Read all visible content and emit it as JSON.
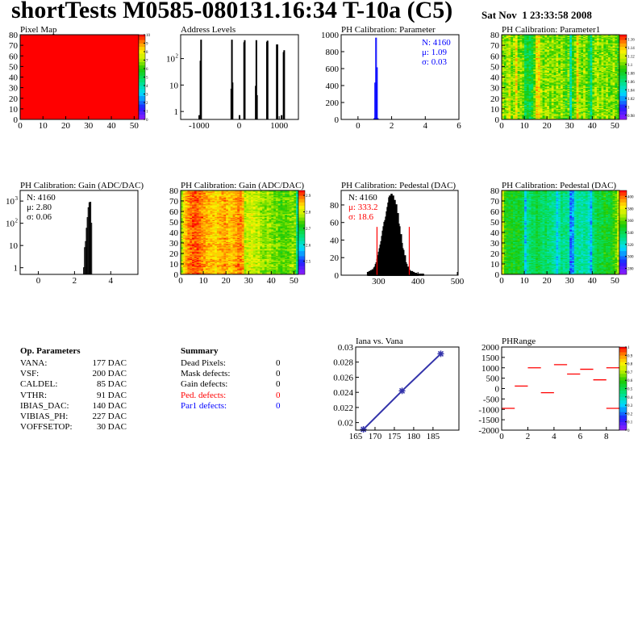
{
  "header": {
    "title": "shortTests M0585-080131.16:34 T-10a (C5)",
    "date": "Sat Nov  1 23:33:58 2008"
  },
  "op_parameters": {
    "heading": "Op. Parameters",
    "rows": [
      {
        "name": "VANA:",
        "value": "177 DAC"
      },
      {
        "name": "VSF:",
        "value": "200 DAC"
      },
      {
        "name": "CALDEL:",
        "value": "85 DAC"
      },
      {
        "name": "VTHR:",
        "value": "91 DAC"
      },
      {
        "name": "IBIAS_DAC:",
        "value": "140 DAC"
      },
      {
        "name": "VIBIAS_PH:",
        "value": "227 DAC"
      },
      {
        "name": "VOFFSETOP:",
        "value": "30 DAC"
      }
    ]
  },
  "summary": {
    "heading": "Summary",
    "rows": [
      {
        "name": "Dead Pixels:",
        "value": "0",
        "color": "#000000"
      },
      {
        "name": "Mask defects:",
        "value": "0",
        "color": "#000000"
      },
      {
        "name": "Gain defects:",
        "value": "0",
        "color": "#000000"
      },
      {
        "name": "Ped. defects:",
        "value": "0",
        "color": "#ff0000"
      },
      {
        "name": "Par1 defects:",
        "value": "0",
        "color": "#0000ff"
      }
    ]
  },
  "chart_data": [
    {
      "type": "heatmap",
      "title": "Pixel Map",
      "x_range": [
        0,
        52
      ],
      "y_range": [
        0,
        80
      ],
      "x_ticks": [
        0,
        10,
        20,
        30,
        40,
        50
      ],
      "y_ticks": [
        0,
        10,
        20,
        30,
        40,
        50,
        60,
        70,
        80
      ],
      "z_range": [
        0,
        10
      ],
      "z_ticks": [
        0,
        1,
        2,
        3,
        4,
        5,
        6,
        7,
        8,
        9,
        10
      ],
      "uniform_value": 10
    },
    {
      "type": "bar",
      "title": "Address Levels",
      "log_y": true,
      "x_range": [
        -1460,
        1480
      ],
      "y_range": [
        0.5,
        800
      ],
      "x_ticks": [
        -1000,
        0,
        1000
      ],
      "y_ticks": [
        {
          "value": 1,
          "label": "1",
          "sup": ""
        },
        {
          "value": 10,
          "label": "10",
          "sup": ""
        },
        {
          "value": 100,
          "label": "10",
          "sup": "2"
        }
      ],
      "bin_width": 15,
      "color": "#000000",
      "bins": [
        {
          "x": -1005,
          "y": 0.7
        },
        {
          "x": -975,
          "y": 80
        },
        {
          "x": -960,
          "y": 500
        },
        {
          "x": -205,
          "y": 7
        },
        {
          "x": -190,
          "y": 500
        },
        {
          "x": -175,
          "y": 12
        },
        {
          "x": 0,
          "y": 0.7
        },
        {
          "x": 115,
          "y": 400
        },
        {
          "x": 130,
          "y": 480
        },
        {
          "x": 405,
          "y": 9
        },
        {
          "x": 420,
          "y": 480
        },
        {
          "x": 435,
          "y": 4
        },
        {
          "x": 685,
          "y": 420
        },
        {
          "x": 700,
          "y": 460
        },
        {
          "x": 930,
          "y": 330
        },
        {
          "x": 945,
          "y": 330
        },
        {
          "x": 1050,
          "y": 0.7
        },
        {
          "x": 1100,
          "y": 170
        },
        {
          "x": 1115,
          "y": 200
        }
      ]
    },
    {
      "type": "bar",
      "title": "PH Calibration: Parameter",
      "x_range": [
        -1,
        6
      ],
      "y_range": [
        0,
        1000
      ],
      "x_ticks": [
        0,
        2,
        4,
        6
      ],
      "y_ticks": [
        0,
        200,
        400,
        600,
        800,
        1000
      ],
      "bin_width": 0.05,
      "color": "#0000ff",
      "bins": [
        {
          "x": 0.95,
          "y": 10
        },
        {
          "x": 1.0,
          "y": 430
        },
        {
          "x": 1.05,
          "y": 960
        },
        {
          "x": 1.1,
          "y": 610
        },
        {
          "x": 1.15,
          "y": 10
        }
      ],
      "stats": [
        {
          "label": "N: 4160",
          "color": "#0000ff"
        },
        {
          "label": "μ: 1.09",
          "color": "#0000ff"
        },
        {
          "label": "σ: 0.03",
          "color": "#0000ff"
        }
      ]
    },
    {
      "type": "heatmap",
      "title": "PH Calibration: Parameter1",
      "x_range": [
        0,
        52
      ],
      "y_range": [
        0,
        80
      ],
      "x_ticks": [
        0,
        10,
        20,
        30,
        40,
        50
      ],
      "y_ticks": [
        0,
        10,
        20,
        30,
        40,
        50,
        60,
        70,
        80
      ],
      "z_range": [
        0.97,
        1.17
      ],
      "z_ticks": [
        0.98,
        1,
        1.02,
        1.04,
        1.06,
        1.08,
        1.1,
        1.12,
        1.14,
        1.16
      ],
      "column_means": [
        1.11,
        1.1,
        1.11,
        1.12,
        1.1,
        1.11,
        1.13,
        1.1,
        1.11,
        1.1,
        1.07,
        1.08,
        1.07,
        1.08,
        1.1,
        1.13,
        1.13,
        1.11,
        1.1,
        1.11,
        1.11,
        1.1,
        1.11,
        1.1,
        1.11,
        1.1,
        1.11,
        1.1,
        1.09,
        1.1,
        1.05,
        1.09,
        1.1,
        1.13,
        1.11,
        1.1,
        1.11,
        1.1,
        1.09,
        1.06,
        1.1,
        1.11,
        1.11,
        1.1,
        1.11,
        1.1,
        1.11,
        1.1,
        1.1,
        1.11,
        1.1,
        1.09
      ]
    },
    {
      "type": "bar",
      "title": "PH Calibration: Gain (ADC/DAC)",
      "log_y": true,
      "x_range": [
        -1,
        5.5
      ],
      "y_range": [
        0.5,
        3000
      ],
      "x_ticks": [
        0,
        2,
        4
      ],
      "y_ticks": [
        {
          "value": 1,
          "label": "1",
          "sup": ""
        },
        {
          "value": 10,
          "label": "10",
          "sup": ""
        },
        {
          "value": 100,
          "label": "10",
          "sup": "2"
        },
        {
          "value": 1000,
          "label": "10",
          "sup": "3"
        }
      ],
      "bin_width": 0.05,
      "color": "#000000",
      "bins": [
        {
          "x": 2.5,
          "y": 1
        },
        {
          "x": 2.55,
          "y": 8
        },
        {
          "x": 2.6,
          "y": 15
        },
        {
          "x": 2.65,
          "y": 60
        },
        {
          "x": 2.7,
          "y": 180
        },
        {
          "x": 2.75,
          "y": 500
        },
        {
          "x": 2.8,
          "y": 850
        },
        {
          "x": 2.85,
          "y": 880
        },
        {
          "x": 2.9,
          "y": 100
        }
      ],
      "stats": [
        {
          "label": "N: 4160",
          "color": "#000000"
        },
        {
          "label": "μ: 2.80",
          "color": "#000000"
        },
        {
          "label": "σ: 0.06",
          "color": "#000000"
        }
      ]
    },
    {
      "type": "heatmap",
      "title": "PH Calibration: Gain (ADC/DAC)",
      "x_range": [
        0,
        52
      ],
      "y_range": [
        0,
        80
      ],
      "x_ticks": [
        0,
        10,
        20,
        30,
        40,
        50
      ],
      "y_ticks": [
        0,
        10,
        20,
        30,
        40,
        50,
        60,
        70,
        80
      ],
      "z_range": [
        2.42,
        2.93
      ],
      "z_ticks": [
        2.5,
        2.6,
        2.7,
        2.8,
        2.9
      ],
      "column_means": [
        2.78,
        2.84,
        2.86,
        2.88,
        2.89,
        2.9,
        2.9,
        2.9,
        2.89,
        2.88,
        2.87,
        2.86,
        2.86,
        2.85,
        2.85,
        2.84,
        2.85,
        2.86,
        2.86,
        2.87,
        2.86,
        2.85,
        2.85,
        2.86,
        2.87,
        2.88,
        2.88,
        2.87,
        2.79,
        2.8,
        2.8,
        2.81,
        2.8,
        2.79,
        2.8,
        2.78,
        2.77,
        2.76,
        2.78,
        2.77,
        2.76,
        2.75,
        2.76,
        2.75,
        2.74,
        2.75,
        2.74,
        2.75,
        2.76,
        2.77,
        2.76,
        2.64
      ]
    },
    {
      "type": "bar",
      "title": "PH Calibration: Pedestal (DAC)",
      "x_range": [
        205,
        502
      ],
      "y_range": [
        0,
        96.5
      ],
      "x_ticks": [
        300,
        400,
        500
      ],
      "y_ticks": [
        0,
        20,
        40,
        60,
        80
      ],
      "bin_width": 2,
      "color": "#000000",
      "fill_color": "#ff0000",
      "cuts": [
        296,
        378
      ],
      "cut_height": 55,
      "cut_color": "#ff0000",
      "bins_start": 272,
      "counts": [
        3,
        2,
        4,
        3,
        5,
        4,
        6,
        5,
        8,
        9,
        12,
        14,
        18,
        22,
        26,
        30,
        34,
        38,
        44,
        50,
        55,
        60,
        62,
        66,
        72,
        77,
        82,
        88,
        90,
        85,
        92,
        86,
        90,
        84,
        85,
        78,
        80,
        68,
        70,
        58,
        55,
        44,
        46,
        36,
        30,
        28,
        20,
        22,
        14,
        12,
        8,
        9,
        6,
        5,
        4,
        3,
        4,
        2,
        3,
        2,
        1,
        2,
        1,
        1,
        1,
        0,
        1,
        0,
        1,
        0,
        1
      ],
      "stats": [
        {
          "label": "N: 4160",
          "color": "#000000"
        },
        {
          "label": "μ: 333.2",
          "color": "#ff0000"
        },
        {
          "label": "σ: 18.6",
          "color": "#ff0000"
        }
      ]
    },
    {
      "type": "heatmap",
      "title": "PH Calibration: Pedestal (DAC)",
      "x_range": [
        0,
        52
      ],
      "y_range": [
        0,
        80
      ],
      "x_ticks": [
        0,
        10,
        20,
        30,
        40,
        50
      ],
      "y_ticks": [
        0,
        10,
        20,
        30,
        40,
        50,
        60,
        70,
        80
      ],
      "z_range": [
        270,
        410
      ],
      "z_ticks": [
        280,
        300,
        320,
        340,
        360,
        380,
        400
      ],
      "column_means": [
        375,
        355,
        350,
        348,
        350,
        345,
        348,
        350,
        345,
        340,
        312,
        330,
        335,
        340,
        338,
        345,
        342,
        338,
        335,
        340,
        335,
        332,
        330,
        328,
        312,
        325,
        335,
        330,
        332,
        328,
        300,
        305,
        325,
        330,
        328,
        325,
        330,
        328,
        322,
        308,
        335,
        340,
        345,
        342,
        345,
        350,
        348,
        345,
        350,
        355,
        360,
        372
      ]
    },
    {
      "type": "line",
      "title": "Iana vs. Vana",
      "x": [
        167,
        177,
        187
      ],
      "y": [
        0.0191,
        0.0242,
        0.0291
      ],
      "x_range": [
        165,
        191.7
      ],
      "y_range": [
        0.019,
        0.03
      ],
      "x_ticks": [
        165,
        170,
        175,
        180,
        185
      ],
      "y_ticks": [
        0.02,
        0.022,
        0.024,
        0.026,
        0.028,
        0.03
      ],
      "color": "#3333aa"
    },
    {
      "type": "heatmap",
      "title": "PHRange",
      "x_range": [
        0,
        9
      ],
      "y_range": [
        -2000,
        2000
      ],
      "x_ticks": [
        0,
        2,
        4,
        6,
        8
      ],
      "y_ticks": [
        -2000,
        -1500,
        -1000,
        -500,
        0,
        500,
        1000,
        1500,
        2000
      ],
      "z_range": [
        0,
        1
      ],
      "z_ticks": [
        0,
        0.1,
        0.2,
        0.3,
        0.4,
        0.5,
        0.6,
        0.7,
        0.8,
        0.9,
        1
      ],
      "color": "#ff0000",
      "segments": [
        {
          "bin": 0,
          "value": -950
        },
        {
          "bin": 1,
          "value": 120
        },
        {
          "bin": 2,
          "value": 1000
        },
        {
          "bin": 3,
          "value": -200
        },
        {
          "bin": 4,
          "value": 1150
        },
        {
          "bin": 5,
          "value": 700
        },
        {
          "bin": 6,
          "value": 930
        },
        {
          "bin": 7,
          "value": 420
        },
        {
          "bin": 8,
          "value": 1000
        },
        {
          "bin": 8,
          "value": -950
        }
      ]
    }
  ]
}
